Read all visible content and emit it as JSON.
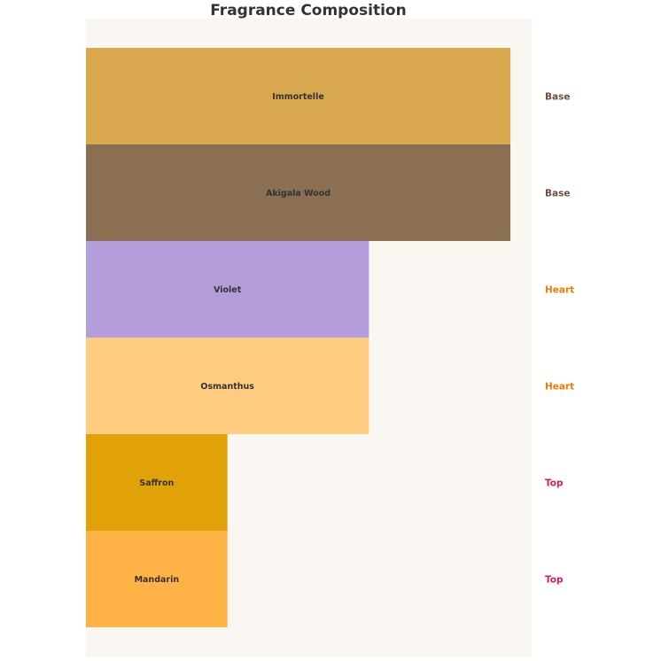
{
  "chart_data": {
    "type": "bar",
    "orientation": "horizontal",
    "title": "Fragrance Composition",
    "categories": [
      "Immortelle",
      "Akigala Wood",
      "Violet",
      "Osmanthus",
      "Saffron",
      "Mandarin"
    ],
    "values": [
      3,
      3,
      2,
      2,
      1,
      1
    ],
    "tiers": [
      "Base",
      "Base",
      "Heart",
      "Heart",
      "Top",
      "Top"
    ],
    "bar_colors": [
      "#D9A84E",
      "#8B6F53",
      "#B39DDB",
      "#FFCC80",
      "#E1A208",
      "#FFB347"
    ],
    "tier_colors": {
      "Base": "#6D4C41",
      "Heart": "#F57C00",
      "Top": "#D81B60"
    },
    "xlim": [
      0,
      3.15
    ],
    "axes_visible": false,
    "grid": false,
    "background": "#FAF7F2"
  }
}
